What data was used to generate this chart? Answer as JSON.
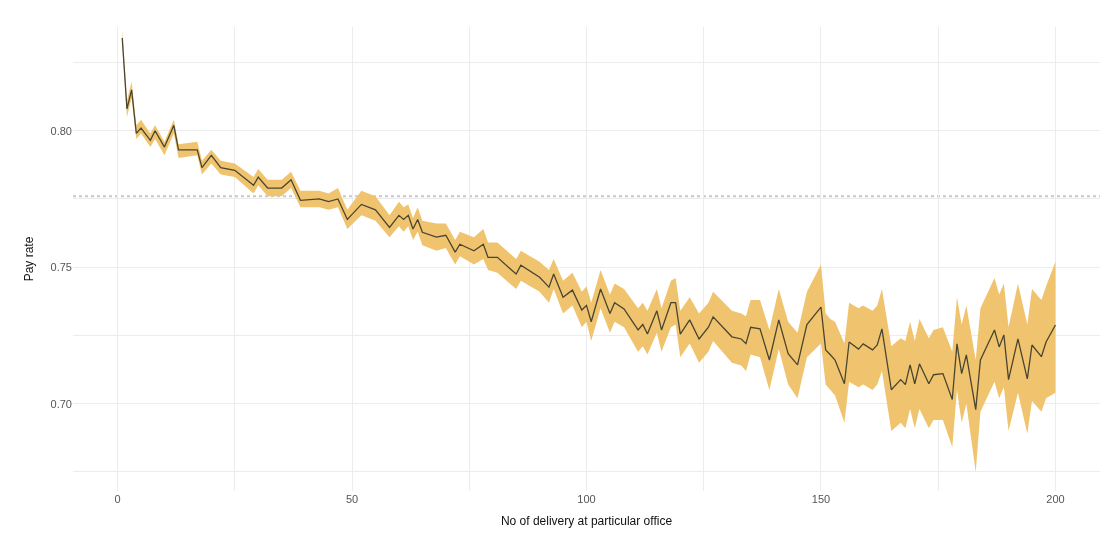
{
  "chart_data": {
    "type": "line",
    "xlabel": "No of delivery at particular office",
    "ylabel": "Pay rate",
    "xlim": [
      -9.5,
      209.5
    ],
    "ylim": [
      0.668,
      0.838
    ],
    "xticks": [
      0,
      {
        "value": 25,
        "label": null
      },
      50,
      {
        "value": 75,
        "label": null
      },
      100,
      {
        "value": 125,
        "label": null
      },
      150,
      {
        "value": 175,
        "label": null
      },
      200
    ],
    "yticks": [
      {
        "value": 0.675,
        "label": null
      },
      {
        "value": 0.7,
        "label": "0.70"
      },
      {
        "value": 0.725,
        "label": null
      },
      {
        "value": 0.75,
        "label": "0.75"
      },
      {
        "value": 0.775,
        "label": null
      },
      {
        "value": 0.8,
        "label": "0.80"
      },
      {
        "value": 0.825,
        "label": null
      }
    ],
    "grid": true,
    "marker": "none",
    "line_style": "solid",
    "ref_lines": [
      {
        "axis": "y",
        "value": 0.776,
        "color": "#c8c8c8",
        "line_style": "dotted"
      }
    ],
    "series": [
      {
        "color": "#4a4530",
        "x": [
          1,
          2,
          3,
          4,
          5,
          7,
          8,
          10,
          12,
          13,
          17,
          18,
          20,
          22,
          25,
          29,
          30,
          32,
          35,
          37,
          39,
          43,
          45,
          47,
          49,
          52,
          55,
          58,
          60,
          61,
          62,
          63,
          64,
          65,
          68,
          70,
          72,
          73,
          76,
          78,
          79,
          81,
          85,
          86,
          90,
          92,
          93,
          95,
          97,
          99,
          100,
          101,
          103,
          105,
          106,
          108,
          111,
          112,
          113,
          115,
          116,
          118,
          119,
          120,
          122,
          124,
          126,
          127,
          131,
          133,
          134,
          135,
          137,
          139,
          141,
          143,
          145,
          147,
          150,
          151,
          152,
          153,
          155,
          156,
          158,
          159,
          161,
          162,
          163,
          165,
          167,
          168,
          169,
          170,
          171,
          173,
          174,
          176,
          178,
          179,
          180,
          181,
          183,
          184,
          187,
          188,
          189,
          190,
          192,
          194,
          195,
          197,
          198,
          200
        ],
        "values": [
          0.834,
          0.808,
          0.815,
          0.799,
          0.801,
          0.7965,
          0.8,
          0.794,
          0.802,
          0.793,
          0.793,
          0.7865,
          0.791,
          0.7865,
          0.7855,
          0.78,
          0.783,
          0.779,
          0.779,
          0.782,
          0.7745,
          0.775,
          0.774,
          0.775,
          0.7675,
          0.773,
          0.771,
          0.7646,
          0.769,
          0.7675,
          0.769,
          0.764,
          0.7675,
          0.7628,
          0.761,
          0.7617,
          0.7555,
          0.7584,
          0.756,
          0.7584,
          0.7536,
          0.7536,
          0.7475,
          0.7507,
          0.7463,
          0.7427,
          0.7475,
          0.739,
          0.7416,
          0.7343,
          0.736,
          0.73,
          0.742,
          0.733,
          0.737,
          0.7347,
          0.727,
          0.729,
          0.7255,
          0.734,
          0.727,
          0.737,
          0.737,
          0.7255,
          0.7307,
          0.7237,
          0.728,
          0.7318,
          0.7245,
          0.7237,
          0.722,
          0.728,
          0.7274,
          0.716,
          0.7307,
          0.7183,
          0.7142,
          0.729,
          0.7354,
          0.7197,
          0.7179,
          0.716,
          0.7073,
          0.7226,
          0.72,
          0.7219,
          0.7197,
          0.7215,
          0.7274,
          0.7051,
          0.7088,
          0.707,
          0.7142,
          0.7073,
          0.7146,
          0.7073,
          0.7106,
          0.711,
          0.7015,
          0.7219,
          0.711,
          0.7179,
          0.6978,
          0.716,
          0.727,
          0.7208,
          0.7252,
          0.7088,
          0.7237,
          0.7091,
          0.7215,
          0.7172,
          0.7226,
          0.7288
        ],
        "lower": [
          0.832,
          0.805,
          0.812,
          0.797,
          0.799,
          0.794,
          0.797,
          0.791,
          0.799,
          0.79,
          0.791,
          0.784,
          0.788,
          0.784,
          0.783,
          0.777,
          0.78,
          0.776,
          0.776,
          0.779,
          0.772,
          0.772,
          0.771,
          0.772,
          0.764,
          0.769,
          0.767,
          0.761,
          0.765,
          0.763,
          0.765,
          0.76,
          0.763,
          0.758,
          0.756,
          0.757,
          0.751,
          0.754,
          0.751,
          0.753,
          0.749,
          0.748,
          0.742,
          0.745,
          0.741,
          0.737,
          0.742,
          0.733,
          0.736,
          0.728,
          0.73,
          0.723,
          0.735,
          0.726,
          0.73,
          0.728,
          0.719,
          0.721,
          0.718,
          0.726,
          0.719,
          0.728,
          0.729,
          0.717,
          0.722,
          0.715,
          0.719,
          0.723,
          0.715,
          0.714,
          0.712,
          0.718,
          0.717,
          0.705,
          0.72,
          0.707,
          0.702,
          0.717,
          0.722,
          0.707,
          0.705,
          0.703,
          0.693,
          0.708,
          0.706,
          0.707,
          0.705,
          0.707,
          0.712,
          0.69,
          0.693,
          0.691,
          0.698,
          0.691,
          0.698,
          0.691,
          0.694,
          0.694,
          0.684,
          0.705,
          0.693,
          0.7,
          0.675,
          0.697,
          0.708,
          0.702,
          0.706,
          0.69,
          0.704,
          0.689,
          0.701,
          0.697,
          0.702,
          0.704
        ],
        "upper": [
          0.837,
          0.811,
          0.818,
          0.802,
          0.804,
          0.799,
          0.802,
          0.796,
          0.804,
          0.795,
          0.796,
          0.789,
          0.793,
          0.789,
          0.788,
          0.783,
          0.786,
          0.782,
          0.782,
          0.785,
          0.778,
          0.778,
          0.777,
          0.779,
          0.771,
          0.778,
          0.776,
          0.769,
          0.774,
          0.772,
          0.773,
          0.768,
          0.772,
          0.767,
          0.766,
          0.766,
          0.76,
          0.763,
          0.761,
          0.764,
          0.759,
          0.759,
          0.753,
          0.756,
          0.752,
          0.749,
          0.753,
          0.745,
          0.748,
          0.741,
          0.743,
          0.737,
          0.749,
          0.74,
          0.744,
          0.742,
          0.735,
          0.737,
          0.734,
          0.742,
          0.735,
          0.745,
          0.746,
          0.734,
          0.739,
          0.733,
          0.737,
          0.741,
          0.734,
          0.733,
          0.732,
          0.738,
          0.738,
          0.727,
          0.742,
          0.73,
          0.726,
          0.741,
          0.751,
          0.733,
          0.731,
          0.73,
          0.722,
          0.737,
          0.735,
          0.736,
          0.734,
          0.736,
          0.742,
          0.721,
          0.724,
          0.723,
          0.73,
          0.723,
          0.731,
          0.724,
          0.727,
          0.728,
          0.719,
          0.739,
          0.729,
          0.736,
          0.716,
          0.735,
          0.746,
          0.74,
          0.744,
          0.728,
          0.744,
          0.729,
          0.742,
          0.738,
          0.743,
          0.752
        ]
      }
    ]
  }
}
